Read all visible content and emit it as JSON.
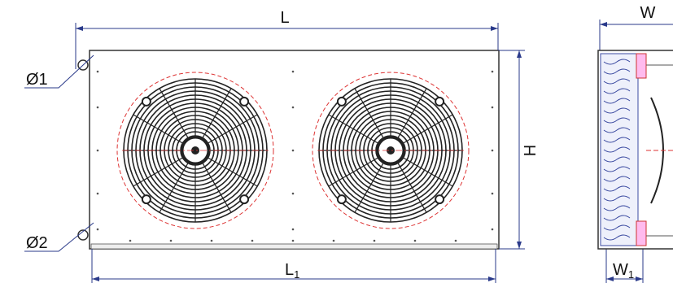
{
  "dimensions": {
    "length": "L",
    "length_inner": {
      "text": "L",
      "sub": "1"
    },
    "height": "H",
    "width": "W",
    "width_inner": {
      "text": "W",
      "sub": "1"
    },
    "port_1": "Ø1",
    "port_2": "Ø2"
  }
}
